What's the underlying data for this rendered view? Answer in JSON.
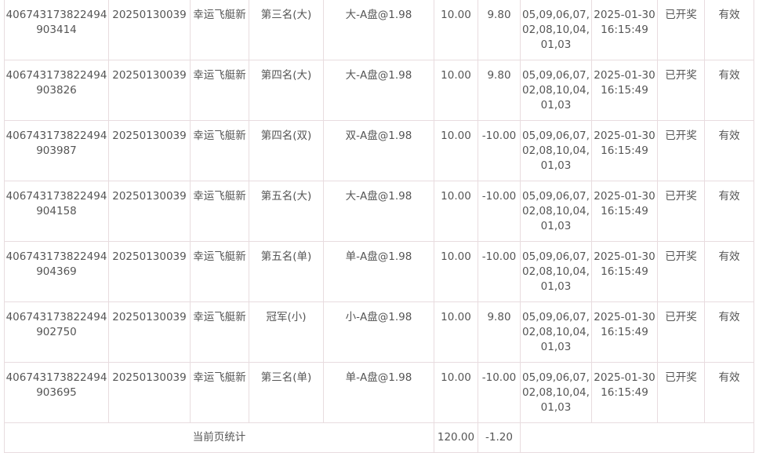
{
  "rows": [
    {
      "order_id": "406743173822494903414",
      "period": "20250130039",
      "game": "幸运飞艇新",
      "bet_item": "第三名(大)",
      "content": "大-A盘@1.98",
      "amount": "10.00",
      "win_loss": "9.80",
      "result": "05,09,06,07,02,08,10,04,01,03",
      "time": "2025-01-30 16:15:49",
      "status": "已开奖",
      "validity": "有效"
    },
    {
      "order_id": "406743173822494903826",
      "period": "20250130039",
      "game": "幸运飞艇新",
      "bet_item": "第四名(大)",
      "content": "大-A盘@1.98",
      "amount": "10.00",
      "win_loss": "9.80",
      "result": "05,09,06,07,02,08,10,04,01,03",
      "time": "2025-01-30 16:15:49",
      "status": "已开奖",
      "validity": "有效"
    },
    {
      "order_id": "406743173822494903987",
      "period": "20250130039",
      "game": "幸运飞艇新",
      "bet_item": "第四名(双)",
      "content": "双-A盘@1.98",
      "amount": "10.00",
      "win_loss": "-10.00",
      "result": "05,09,06,07,02,08,10,04,01,03",
      "time": "2025-01-30 16:15:49",
      "status": "已开奖",
      "validity": "有效"
    },
    {
      "order_id": "406743173822494904158",
      "period": "20250130039",
      "game": "幸运飞艇新",
      "bet_item": "第五名(大)",
      "content": "大-A盘@1.98",
      "amount": "10.00",
      "win_loss": "-10.00",
      "result": "05,09,06,07,02,08,10,04,01,03",
      "time": "2025-01-30 16:15:49",
      "status": "已开奖",
      "validity": "有效"
    },
    {
      "order_id": "406743173822494904369",
      "period": "20250130039",
      "game": "幸运飞艇新",
      "bet_item": "第五名(单)",
      "content": "单-A盘@1.98",
      "amount": "10.00",
      "win_loss": "-10.00",
      "result": "05,09,06,07,02,08,10,04,01,03",
      "time": "2025-01-30 16:15:49",
      "status": "已开奖",
      "validity": "有效"
    },
    {
      "order_id": "406743173822494902750",
      "period": "20250130039",
      "game": "幸运飞艇新",
      "bet_item": "冠军(小)",
      "content": "小-A盘@1.98",
      "amount": "10.00",
      "win_loss": "9.80",
      "result": "05,09,06,07,02,08,10,04,01,03",
      "time": "2025-01-30 16:15:49",
      "status": "已开奖",
      "validity": "有效"
    },
    {
      "order_id": "406743173822494903695",
      "period": "20250130039",
      "game": "幸运飞艇新",
      "bet_item": "第三名(单)",
      "content": "单-A盘@1.98",
      "amount": "10.00",
      "win_loss": "-10.00",
      "result": "05,09,06,07,02,08,10,04,01,03",
      "time": "2025-01-30 16:15:49",
      "status": "已开奖",
      "validity": "有效"
    }
  ],
  "summary": {
    "label": "当前页统计",
    "amount": "120.00",
    "win_loss": "-1.20"
  }
}
